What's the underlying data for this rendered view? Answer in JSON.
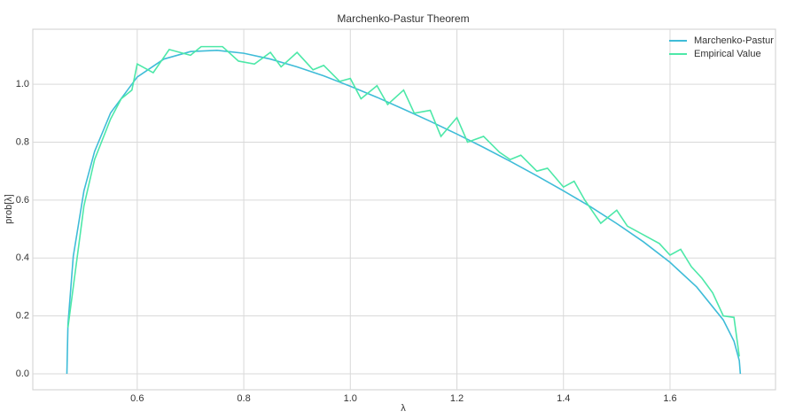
{
  "chart_data": {
    "type": "line",
    "title": "Marchenko-Pastur Theorem",
    "x_label": "λ",
    "y_label": "prob[λ]",
    "xlim": [
      0.404,
      1.798
    ],
    "ylim": [
      -0.055,
      1.19
    ],
    "xticks": [
      0.6,
      0.8,
      {
        "value": 1,
        "label": "1.0"
      },
      1.2,
      1.4,
      1.6
    ],
    "yticks": [
      {
        "value": 0,
        "label": "0.0"
      },
      0.2,
      0.4,
      0.6,
      0.8,
      {
        "value": 1,
        "label": "1.0"
      }
    ],
    "grid": true,
    "legend": "upper right",
    "series": [
      {
        "name": "Marchenko-Pastur",
        "color": "#3fbcd8",
        "x": [
          0.468,
          0.47,
          0.48,
          0.5,
          0.52,
          0.55,
          0.6,
          0.65,
          0.7,
          0.75,
          0.8,
          0.85,
          0.9,
          0.95,
          1.0,
          1.05,
          1.1,
          1.15,
          1.2,
          1.25,
          1.3,
          1.35,
          1.4,
          1.45,
          1.5,
          1.55,
          1.6,
          1.65,
          1.7,
          1.72,
          1.73,
          1.732
        ],
        "values": [
          0,
          0.17,
          0.406,
          0.632,
          0.768,
          0.901,
          1.025,
          1.087,
          1.113,
          1.117,
          1.107,
          1.087,
          1.06,
          1.029,
          0.993,
          0.955,
          0.914,
          0.872,
          0.828,
          0.782,
          0.734,
          0.684,
          0.632,
          0.578,
          0.519,
          0.456,
          0.385,
          0.3,
          0.186,
          0.113,
          0.046,
          0
        ]
      },
      {
        "name": "Empirical Value",
        "color": "#4de8a8",
        "x": [
          0.47,
          0.48,
          0.5,
          0.52,
          0.55,
          0.57,
          0.59,
          0.6,
          0.63,
          0.66,
          0.7,
          0.72,
          0.76,
          0.79,
          0.82,
          0.85,
          0.87,
          0.9,
          0.93,
          0.95,
          0.98,
          1.0,
          1.02,
          1.05,
          1.07,
          1.1,
          1.12,
          1.15,
          1.17,
          1.2,
          1.22,
          1.25,
          1.28,
          1.3,
          1.32,
          1.35,
          1.37,
          1.4,
          1.42,
          1.44,
          1.47,
          1.5,
          1.52,
          1.55,
          1.58,
          1.6,
          1.62,
          1.64,
          1.66,
          1.68,
          1.7,
          1.72,
          1.73
        ],
        "values": [
          0.16,
          0.3,
          0.58,
          0.74,
          0.88,
          0.95,
          0.98,
          1.07,
          1.04,
          1.12,
          1.1,
          1.13,
          1.13,
          1.08,
          1.07,
          1.11,
          1.06,
          1.11,
          1.05,
          1.065,
          1.01,
          1.02,
          0.95,
          0.995,
          0.93,
          0.98,
          0.9,
          0.91,
          0.82,
          0.885,
          0.8,
          0.82,
          0.765,
          0.74,
          0.755,
          0.7,
          0.71,
          0.645,
          0.665,
          0.6,
          0.52,
          0.565,
          0.51,
          0.48,
          0.45,
          0.41,
          0.43,
          0.37,
          0.33,
          0.28,
          0.2,
          0.195,
          0.06
        ]
      }
    ]
  }
}
